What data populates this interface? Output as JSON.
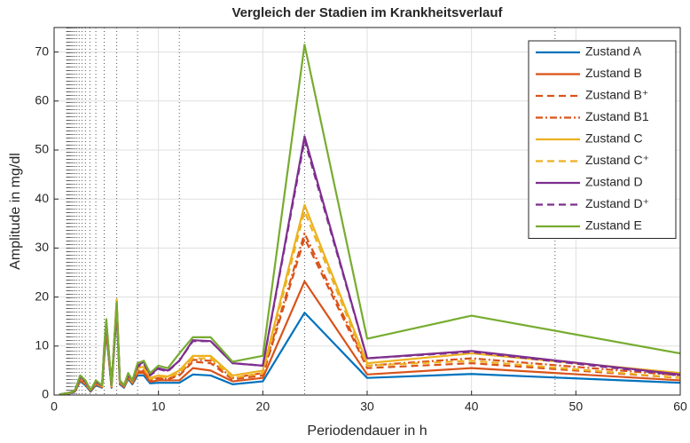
{
  "chart_data": {
    "type": "line",
    "title": "Vergleich der Stadien im Krankheitsverlauf",
    "x_label": "Periodendauer in h",
    "y_label": "Amplitude in mg/dl",
    "xlim": [
      0,
      60
    ],
    "xticks": [
      0,
      10,
      20,
      30,
      40,
      50,
      60
    ],
    "ylim": [
      0,
      75
    ],
    "yticks": [
      0,
      10,
      20,
      30,
      40,
      50,
      60,
      70
    ],
    "grid": true,
    "legend": "top-right",
    "reference_lines_x": [
      48,
      24,
      12,
      8,
      6,
      4.8,
      4,
      3.43,
      3,
      2.67,
      2.4,
      2.18,
      2,
      1.85,
      1.71,
      1.6,
      1.5,
      1.41,
      1.33,
      1.26,
      1.2
    ],
    "x": [
      0.5,
      1,
      1.5,
      2,
      2.5,
      3,
      3.5,
      4,
      4.6,
      4.8,
      5,
      5.5,
      6,
      6.3,
      6.7,
      7.1,
      7.5,
      8,
      8.6,
      9.2,
      10,
      10.9,
      12,
      13.3,
      15,
      17.1,
      20,
      24,
      30,
      40,
      60
    ],
    "series": [
      {
        "name": "Zustand A",
        "color": "#0072bd",
        "linestyle": "solid",
        "values": [
          0.1,
          0.2,
          0.3,
          0.7,
          2.8,
          2,
          0.7,
          2,
          1.5,
          7.5,
          13,
          1.5,
          17,
          2.2,
          1.5,
          3.3,
          2.2,
          4,
          4,
          2.4,
          2.5,
          2.5,
          2.5,
          4.2,
          4,
          2.2,
          2.8,
          16.8,
          3.5,
          4.3,
          2.5
        ]
      },
      {
        "name": "Zustand B",
        "color": "#d95319",
        "linestyle": "solid",
        "values": [
          0.1,
          0.2,
          0.4,
          0.8,
          3,
          2.2,
          0.8,
          2.2,
          1.6,
          8,
          13.5,
          1.6,
          17.5,
          2.4,
          1.6,
          3.5,
          2.4,
          4.5,
          4.5,
          2.7,
          3,
          3,
          3,
          5.5,
          5,
          2.8,
          3.5,
          23.2,
          4.2,
          5.5,
          3
        ]
      },
      {
        "name": "Zustand B⁺",
        "color": "#d95319",
        "linestyle": "dashed",
        "values": [
          0.1,
          0.3,
          0.4,
          0.8,
          3.1,
          2.3,
          0.8,
          2.3,
          1.7,
          8.3,
          13.8,
          1.7,
          17.8,
          2.5,
          1.7,
          3.6,
          2.5,
          4.8,
          4.8,
          2.9,
          3.3,
          3.2,
          4,
          6.8,
          6.5,
          3.2,
          4,
          32,
          5.5,
          6.5,
          3.5
        ]
      },
      {
        "name": "Zustand B1",
        "color": "#d95319",
        "linestyle": "dashdot",
        "values": [
          0.1,
          0.3,
          0.4,
          0.8,
          3.2,
          2.4,
          0.8,
          2.4,
          1.7,
          8.5,
          14,
          1.7,
          18,
          2.6,
          1.7,
          3.7,
          2.6,
          5,
          5,
          3,
          3.5,
          3.3,
          4.2,
          7.2,
          7,
          3.5,
          4.5,
          33,
          6,
          7.5,
          4
        ]
      },
      {
        "name": "Zustand C",
        "color": "#edb120",
        "linestyle": "solid",
        "values": [
          0.1,
          0.3,
          0.4,
          0.9,
          3.5,
          2.6,
          0.9,
          2.6,
          1.8,
          9,
          14.5,
          1.8,
          19.5,
          2.8,
          1.8,
          4,
          2.8,
          5.5,
          5.8,
          3.5,
          4,
          3.8,
          5,
          8,
          8,
          4,
          5,
          38.8,
          6.5,
          8.5,
          4.5
        ]
      },
      {
        "name": "Zustand C⁺",
        "color": "#edb120",
        "linestyle": "dashed",
        "values": [
          0.1,
          0.3,
          0.4,
          0.9,
          3.4,
          2.5,
          0.9,
          2.5,
          1.8,
          8.8,
          14.2,
          1.8,
          19,
          2.7,
          1.8,
          3.9,
          2.7,
          5.3,
          5.5,
          3.3,
          3.8,
          3.6,
          4.5,
          7.5,
          7.5,
          3.5,
          4.5,
          37.5,
          6,
          7,
          3.5
        ]
      },
      {
        "name": "Zustand D",
        "color": "#7e2f8e",
        "linestyle": "solid",
        "values": [
          0.1,
          0.3,
          0.5,
          1,
          3.8,
          2.8,
          1,
          2.8,
          2,
          9.5,
          15,
          2,
          18.5,
          3,
          2,
          4.2,
          3,
          6,
          6.8,
          4.2,
          5.5,
          5,
          7,
          11.2,
          11,
          6.5,
          6,
          52.8,
          7.5,
          9,
          4.2
        ]
      },
      {
        "name": "Zustand D⁺",
        "color": "#7e2f8e",
        "linestyle": "dashed",
        "values": [
          0.1,
          0.3,
          0.5,
          0.9,
          3.6,
          2.7,
          0.9,
          2.7,
          1.9,
          9.3,
          14.8,
          1.9,
          18,
          2.9,
          1.9,
          4,
          2.9,
          5.8,
          6.5,
          4,
          5.3,
          4.8,
          7,
          11,
          11,
          6.5,
          6,
          52,
          7.5,
          8.8,
          4
        ]
      },
      {
        "name": "Zustand E",
        "color": "#77ac30",
        "linestyle": "solid",
        "values": [
          0.1,
          0.3,
          0.5,
          1,
          4,
          3,
          1,
          3,
          2,
          10,
          15.5,
          2,
          19,
          3,
          2,
          4.5,
          3,
          6.5,
          7,
          4.5,
          6,
          5.5,
          8.5,
          11.8,
          11.8,
          6.8,
          8,
          71.5,
          11.5,
          16.2,
          8.5
        ]
      }
    ]
  }
}
